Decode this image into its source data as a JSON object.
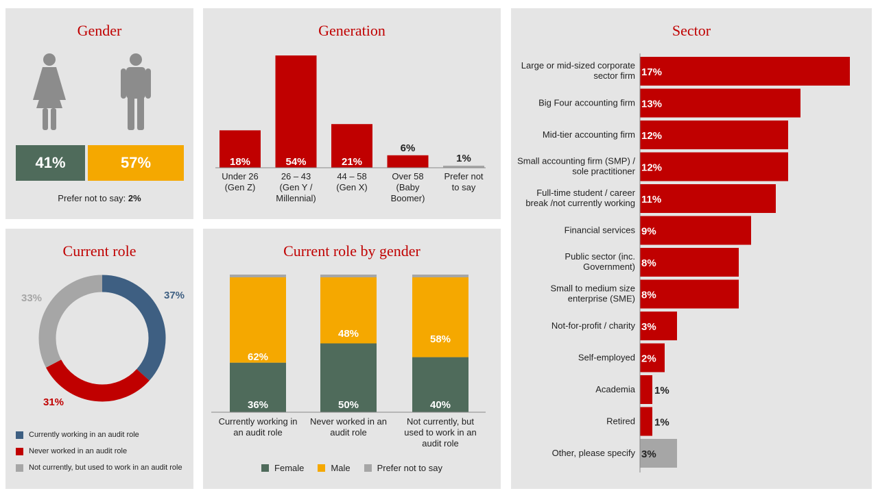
{
  "gender": {
    "title": "Gender",
    "female_pct": "41%",
    "male_pct": "57%",
    "prefer_label": "Prefer not to say: ",
    "prefer_value": "2%",
    "colors": {
      "female": "#4f6b5b",
      "male": "#f5a800",
      "figure": "#8c8c8c"
    },
    "icons": [
      "female-figure-icon",
      "male-figure-icon"
    ]
  },
  "generation": {
    "title": "Generation"
  },
  "sector": {
    "title": "Sector"
  },
  "current_role": {
    "title": "Current role"
  },
  "role_by_gender": {
    "title": "Current role by gender"
  },
  "chart_data": [
    {
      "id": "generation",
      "type": "bar",
      "title": "Generation",
      "categories": [
        [
          "Under 26",
          "(Gen Z)"
        ],
        [
          "26 – 43",
          "(Gen Y /",
          "Millennial)"
        ],
        [
          "44 – 58",
          "(Gen X)"
        ],
        [
          "Over 58",
          "(Baby",
          "Boomer)"
        ],
        [
          "Prefer not",
          "to say"
        ]
      ],
      "values": [
        18,
        54,
        21,
        6,
        1
      ],
      "labels": [
        "18%",
        "54%",
        "21%",
        "6%",
        "1%"
      ],
      "colors": [
        "#c00000",
        "#c00000",
        "#c00000",
        "#c00000",
        "#a6a6a6"
      ],
      "ylim": [
        0,
        54
      ]
    },
    {
      "id": "sector",
      "type": "bar",
      "orientation": "horizontal",
      "title": "Sector",
      "categories": [
        [
          "Large or mid-sized corporate",
          "sector firm"
        ],
        [
          "Big Four accounting firm"
        ],
        [
          "Mid-tier accounting firm"
        ],
        [
          "Small accounting firm (SMP) /",
          "sole practitioner"
        ],
        [
          "Full-time student / career",
          "break /not currently working"
        ],
        [
          "Financial services"
        ],
        [
          "Public sector (inc.",
          "Government)"
        ],
        [
          "Small to medium size",
          "enterprise (SME)"
        ],
        [
          "Not-for-profit / charity"
        ],
        [
          "Self-employed"
        ],
        [
          "Academia"
        ],
        [
          "Retired"
        ],
        [
          "Other, please specify"
        ]
      ],
      "values": [
        17,
        13,
        12,
        12,
        11,
        9,
        8,
        8,
        3,
        2,
        1,
        1,
        3
      ],
      "labels": [
        "17%",
        "13%",
        "12%",
        "12%",
        "11%",
        "9%",
        "8%",
        "8%",
        "3%",
        "2%",
        "1%",
        "1%",
        "3%"
      ],
      "colors": [
        "#c00000",
        "#c00000",
        "#c00000",
        "#c00000",
        "#c00000",
        "#c00000",
        "#c00000",
        "#c00000",
        "#c00000",
        "#c00000",
        "#c00000",
        "#c00000",
        "#a6a6a6"
      ],
      "xlim": [
        0,
        17
      ]
    },
    {
      "id": "current_role",
      "type": "pie",
      "title": "Current role",
      "categories": [
        "Currently working in an audit role",
        "Never worked in an audit role",
        "Not currently, but used to work in an audit role"
      ],
      "values": [
        37,
        31,
        33
      ],
      "labels": [
        "37%",
        "31%",
        "33%"
      ],
      "colors": [
        "#3e5f82",
        "#c00000",
        "#a6a6a6"
      ]
    },
    {
      "id": "role_by_gender",
      "type": "bar",
      "stacked": true,
      "title": "Current role by gender",
      "categories": [
        [
          "Currently working in",
          "an audit role"
        ],
        [
          "Never worked in an",
          "audit role"
        ],
        [
          "Not currently, but",
          "used to work in an",
          "audit role"
        ]
      ],
      "series": [
        {
          "name": "Female",
          "values": [
            36,
            50,
            40
          ],
          "labels": [
            "36%",
            "50%",
            "40%"
          ],
          "color": "#4f6b5b"
        },
        {
          "name": "Male",
          "values": [
            62,
            48,
            58
          ],
          "labels": [
            "62%",
            "48%",
            "58%"
          ],
          "color": "#f5a800"
        },
        {
          "name": "Prefer not to say",
          "values": [
            2,
            2,
            2
          ],
          "color": "#a6a6a6"
        }
      ],
      "ylim": [
        0,
        100
      ]
    }
  ]
}
